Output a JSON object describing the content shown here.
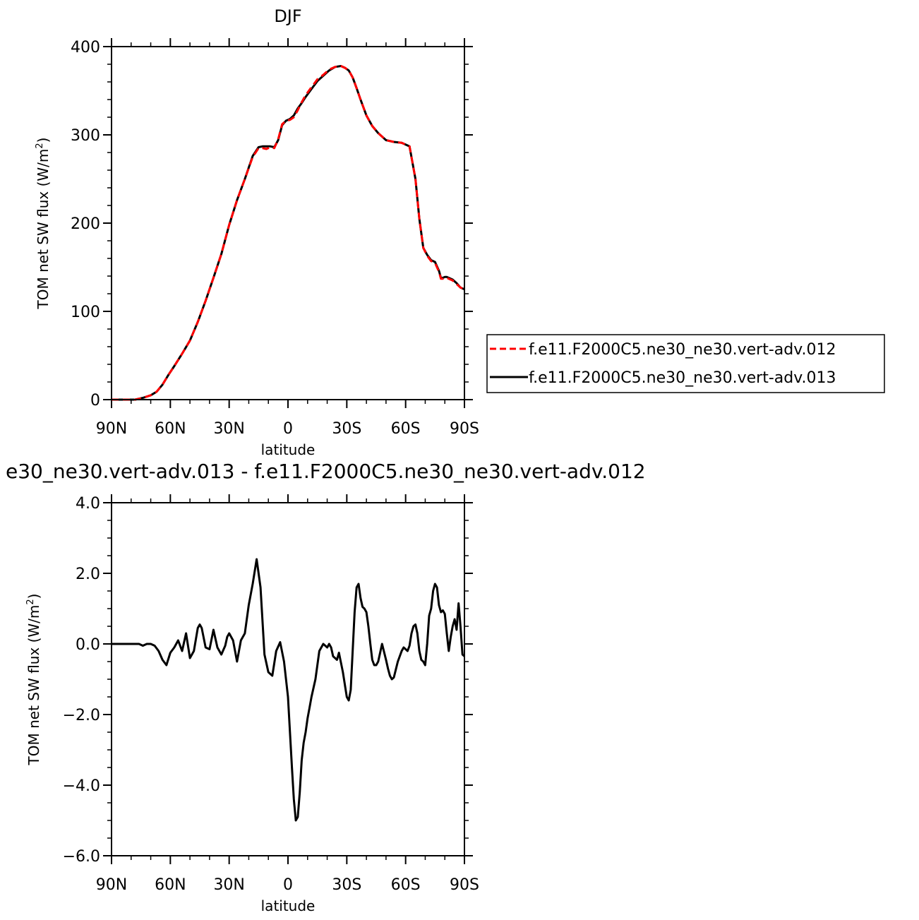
{
  "chart_data": [
    {
      "type": "line",
      "title": "DJF",
      "xlabel": "latitude",
      "ylabel_main": "TOM net SW flux (W/m",
      "ylabel_sup": "2",
      "ylabel_tail": ")",
      "xlim": [
        90,
        -90
      ],
      "ylim": [
        0,
        400
      ],
      "x_ticks": [
        90,
        60,
        30,
        0,
        -30,
        -60,
        -90
      ],
      "x_tick_labels": [
        "90N",
        "60N",
        "30N",
        "0",
        "30S",
        "60S",
        "90S"
      ],
      "y_ticks": [
        0,
        100,
        200,
        300,
        400
      ],
      "y_tick_labels": [
        "0",
        "100",
        "200",
        "300",
        "400"
      ],
      "legend": "right",
      "series": [
        {
          "name": "f.e11.F2000C5.ne30_ne30.vert-adv.012",
          "color": "#ff0000",
          "dash": "dashed",
          "x": [
            90,
            84,
            78,
            74,
            70,
            67,
            64,
            61,
            58,
            54,
            50,
            46,
            42,
            38,
            34,
            30,
            26,
            22,
            18,
            15,
            13,
            11,
            9,
            7,
            5,
            3,
            1,
            -1,
            -3,
            -5,
            -7,
            -9,
            -12,
            -15,
            -18,
            -21,
            -24,
            -27,
            -29,
            -31,
            -33,
            -35,
            -37,
            -40,
            -43,
            -46,
            -50,
            -54,
            -58,
            -62,
            -65,
            -67,
            -69,
            -71,
            -73,
            -75,
            -77,
            -78,
            -79,
            -80,
            -81,
            -82,
            -84,
            -86,
            -88,
            -90
          ],
          "values": [
            0,
            0,
            0,
            2,
            5,
            9,
            17,
            28,
            38,
            52,
            67,
            88,
            112,
            138,
            165,
            198,
            226,
            250,
            275,
            285,
            285,
            284,
            286,
            285,
            295,
            312,
            316,
            317,
            320,
            328,
            337,
            345,
            354,
            363,
            368,
            374,
            377,
            378,
            376,
            373,
            365,
            353,
            340,
            322,
            310,
            302,
            294,
            292,
            291,
            287,
            250,
            205,
            172,
            163,
            157,
            155,
            145,
            137,
            137,
            138,
            138,
            137,
            135,
            131,
            127,
            125
          ]
        },
        {
          "name": "f.e11.F2000C5.ne30_ne30.vert-adv.013",
          "color": "#000000",
          "dash": "solid",
          "x": [
            90,
            84,
            78,
            74,
            70,
            67,
            64,
            61,
            58,
            54,
            50,
            46,
            42,
            38,
            34,
            30,
            26,
            22,
            18,
            15,
            13,
            11,
            9,
            7,
            5,
            3,
            1,
            -1,
            -3,
            -5,
            -7,
            -9,
            -12,
            -15,
            -18,
            -21,
            -24,
            -27,
            -29,
            -31,
            -33,
            -35,
            -37,
            -40,
            -43,
            -46,
            -50,
            -54,
            -58,
            -62,
            -65,
            -67,
            -69,
            -71,
            -73,
            -75,
            -77,
            -78,
            -79,
            -80,
            -81,
            -82,
            -84,
            -86,
            -88,
            -90
          ],
          "values": [
            0,
            0,
            0,
            2,
            5,
            9,
            17,
            28,
            38,
            52,
            67,
            88,
            112,
            138,
            165,
            198,
            226,
            250,
            276,
            286,
            287,
            287,
            287,
            286,
            294,
            311,
            316,
            318,
            322,
            330,
            336,
            343,
            352,
            361,
            367,
            373,
            377,
            378,
            376,
            373,
            365,
            353,
            340,
            322,
            310,
            302,
            294,
            292,
            291,
            287,
            250,
            205,
            172,
            164,
            158,
            156,
            146,
            138,
            138,
            139,
            139,
            138,
            136,
            132,
            127,
            125
          ]
        }
      ]
    },
    {
      "type": "line",
      "title": "e30_ne30.vert-adv.013 - f.e11.F2000C5.ne30_ne30.vert-adv.012",
      "xlabel": "latitude",
      "ylabel_main": "TOM net SW flux (W/m",
      "ylabel_sup": "2",
      "ylabel_tail": ")",
      "xlim": [
        90,
        -90
      ],
      "ylim": [
        -6,
        4
      ],
      "x_ticks": [
        90,
        60,
        30,
        0,
        -30,
        -60,
        -90
      ],
      "x_tick_labels": [
        "90N",
        "60N",
        "30N",
        "0",
        "30S",
        "60S",
        "90S"
      ],
      "y_ticks": [
        -6,
        -4,
        -2,
        0,
        2,
        4
      ],
      "y_tick_labels": [
        "−6.0",
        "−4.0",
        "−2.0",
        "0.0",
        "2.0",
        "4.0"
      ],
      "series": [
        {
          "color": "#000000",
          "dash": "solid",
          "x": [
            90,
            76,
            74,
            72,
            70,
            68,
            66,
            64,
            62,
            60,
            58,
            56,
            54,
            52,
            50,
            48,
            46,
            45,
            44,
            42,
            40,
            38,
            36,
            34,
            32,
            31,
            30,
            28,
            26,
            24,
            22,
            20,
            19,
            18,
            16,
            14,
            12,
            10,
            8,
            6,
            4,
            2,
            1,
            0,
            -1,
            -2,
            -3,
            -4,
            -5,
            -6,
            -7,
            -8,
            -9,
            -10,
            -11,
            -12,
            -14,
            -16,
            -18,
            -20,
            -21,
            -22,
            -23,
            -24,
            -25,
            -26,
            -28,
            -30,
            -31,
            -32,
            -34,
            -35,
            -36,
            -37,
            -38,
            -39,
            -40,
            -41,
            -42,
            -43,
            -44,
            -45,
            -46,
            -48,
            -50,
            -51,
            -52,
            -53,
            -54,
            -56,
            -58,
            -59,
            -60,
            -61,
            -62,
            -63,
            -64,
            -65,
            -66,
            -67,
            -68,
            -69,
            -70,
            -71,
            -72,
            -73,
            -74,
            -75,
            -76,
            -77,
            -78,
            -79,
            -80,
            -81,
            -82,
            -83,
            -84,
            -85,
            -86,
            -87,
            -88,
            -89,
            -90
          ],
          "values": [
            0.0,
            0.0,
            -0.05,
            0.0,
            0.0,
            -0.05,
            -0.2,
            -0.45,
            -0.6,
            -0.25,
            -0.1,
            0.1,
            -0.2,
            0.3,
            -0.4,
            -0.2,
            0.45,
            0.55,
            0.45,
            -0.1,
            -0.15,
            0.4,
            -0.1,
            -0.3,
            -0.05,
            0.2,
            0.3,
            0.1,
            -0.5,
            0.1,
            0.3,
            1.1,
            1.4,
            1.7,
            2.4,
            1.6,
            -0.3,
            -0.8,
            -0.9,
            -0.2,
            0.05,
            -0.5,
            -1.0,
            -1.5,
            -2.5,
            -3.5,
            -4.4,
            -5.0,
            -4.9,
            -4.2,
            -3.3,
            -2.8,
            -2.5,
            -2.1,
            -1.8,
            -1.5,
            -1.0,
            -0.2,
            0.0,
            -0.1,
            0.0,
            -0.1,
            -0.35,
            -0.4,
            -0.45,
            -0.25,
            -0.8,
            -1.5,
            -1.6,
            -1.3,
            0.9,
            1.6,
            1.7,
            1.3,
            1.05,
            1.0,
            0.9,
            0.5,
            0.0,
            -0.45,
            -0.6,
            -0.6,
            -0.5,
            0.0,
            -0.45,
            -0.7,
            -0.9,
            -1.0,
            -0.95,
            -0.5,
            -0.2,
            -0.1,
            -0.15,
            -0.2,
            -0.05,
            0.3,
            0.5,
            0.55,
            0.3,
            -0.2,
            -0.45,
            -0.5,
            -0.6,
            0.0,
            0.8,
            1.0,
            1.5,
            1.7,
            1.6,
            1.1,
            0.9,
            0.95,
            0.85,
            0.3,
            -0.2,
            0.2,
            0.5,
            0.7,
            0.4,
            1.15,
            0.5,
            -0.3,
            -0.35
          ]
        }
      ]
    }
  ]
}
